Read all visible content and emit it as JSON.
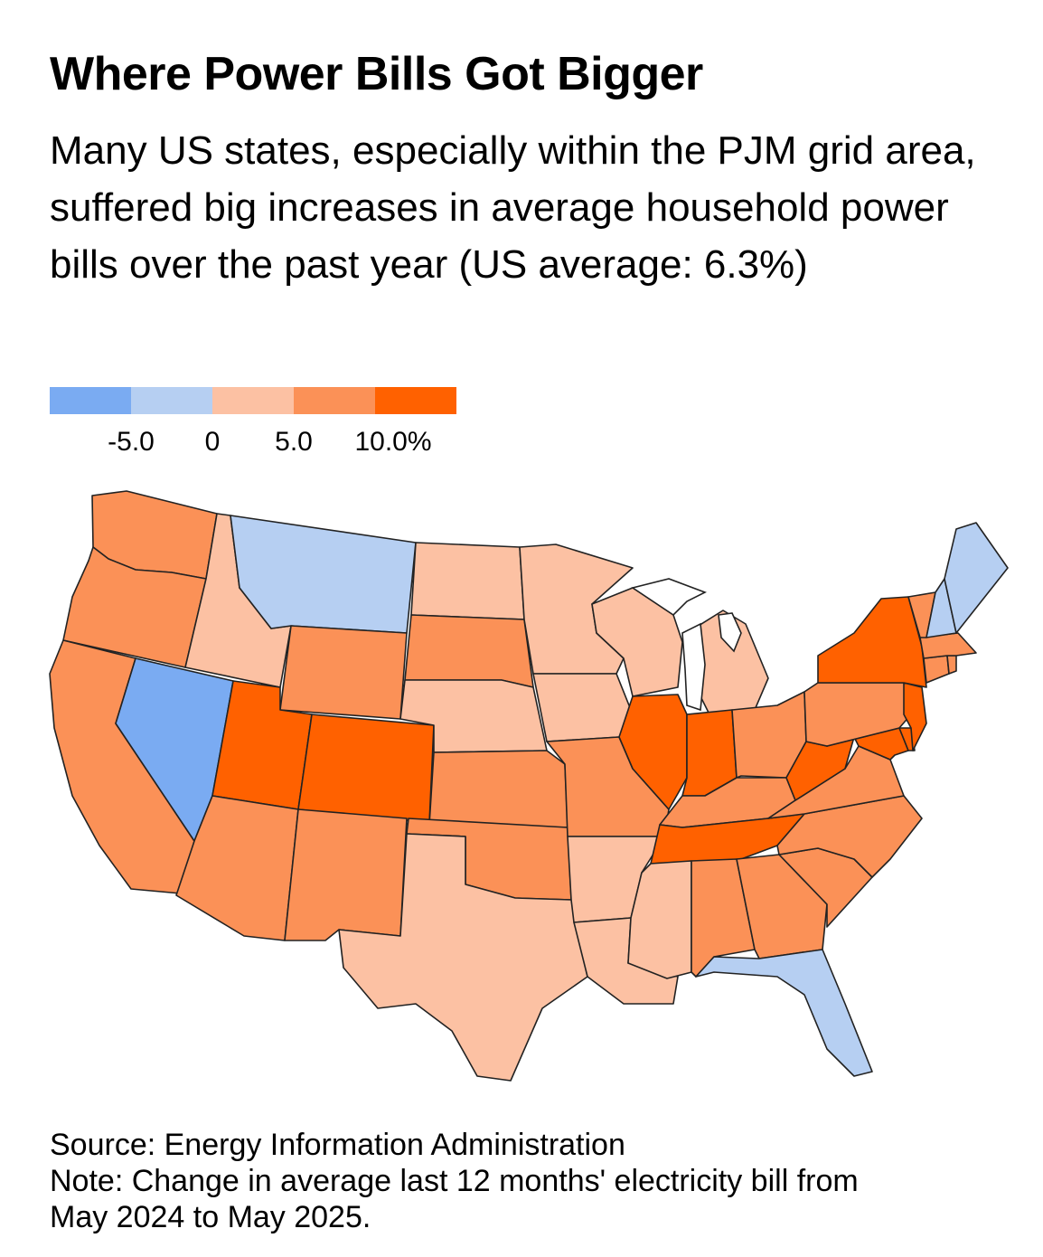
{
  "title": "Where Power Bills Got Bigger",
  "subtitle": "Many US states, especially within the PJM grid area, suffered big increases in average household power bills over the past year (US average: 6.3%)",
  "legend": {
    "colors": [
      "#7aabf2",
      "#b6cff2",
      "#fcc1a3",
      "#fb9157",
      "#ff6100"
    ],
    "ticks": [
      "-5.0",
      "0",
      "5.0",
      "10.0%"
    ]
  },
  "bins": {
    "b1": "#7aabf2",
    "b2": "#b6cff2",
    "b3": "#fcc1a3",
    "b4": "#fb9157",
    "b5": "#ff6100"
  },
  "states": [
    {
      "name": "Washington",
      "bin": "b4"
    },
    {
      "name": "Oregon",
      "bin": "b4"
    },
    {
      "name": "California",
      "bin": "b4"
    },
    {
      "name": "Idaho",
      "bin": "b3"
    },
    {
      "name": "Nevada",
      "bin": "b1"
    },
    {
      "name": "Montana",
      "bin": "b2"
    },
    {
      "name": "Wyoming",
      "bin": "b4"
    },
    {
      "name": "Utah",
      "bin": "b5"
    },
    {
      "name": "Arizona",
      "bin": "b4"
    },
    {
      "name": "Colorado",
      "bin": "b5"
    },
    {
      "name": "New Mexico",
      "bin": "b4"
    },
    {
      "name": "North Dakota",
      "bin": "b3"
    },
    {
      "name": "South Dakota",
      "bin": "b4"
    },
    {
      "name": "Nebraska",
      "bin": "b3"
    },
    {
      "name": "Kansas",
      "bin": "b4"
    },
    {
      "name": "Oklahoma",
      "bin": "b4"
    },
    {
      "name": "Texas",
      "bin": "b3"
    },
    {
      "name": "Minnesota",
      "bin": "b3"
    },
    {
      "name": "Iowa",
      "bin": "b3"
    },
    {
      "name": "Missouri",
      "bin": "b4"
    },
    {
      "name": "Arkansas",
      "bin": "b3"
    },
    {
      "name": "Louisiana",
      "bin": "b3"
    },
    {
      "name": "Wisconsin",
      "bin": "b3"
    },
    {
      "name": "Illinois",
      "bin": "b5"
    },
    {
      "name": "Michigan",
      "bin": "b3"
    },
    {
      "name": "Indiana",
      "bin": "b5"
    },
    {
      "name": "Ohio",
      "bin": "b4"
    },
    {
      "name": "Kentucky",
      "bin": "b4"
    },
    {
      "name": "Tennessee",
      "bin": "b5"
    },
    {
      "name": "Mississippi",
      "bin": "b3"
    },
    {
      "name": "Alabama",
      "bin": "b4"
    },
    {
      "name": "Georgia",
      "bin": "b4"
    },
    {
      "name": "Florida",
      "bin": "b2"
    },
    {
      "name": "South Carolina",
      "bin": "b4"
    },
    {
      "name": "North Carolina",
      "bin": "b4"
    },
    {
      "name": "Virginia",
      "bin": "b4"
    },
    {
      "name": "West Virginia",
      "bin": "b5"
    },
    {
      "name": "Maryland",
      "bin": "b5"
    },
    {
      "name": "Delaware",
      "bin": "b5"
    },
    {
      "name": "Pennsylvania",
      "bin": "b4"
    },
    {
      "name": "New Jersey",
      "bin": "b5"
    },
    {
      "name": "New York",
      "bin": "b5"
    },
    {
      "name": "Connecticut",
      "bin": "b4"
    },
    {
      "name": "Rhode Island",
      "bin": "b4"
    },
    {
      "name": "Massachusetts",
      "bin": "b4"
    },
    {
      "name": "Vermont",
      "bin": "b4"
    },
    {
      "name": "New Hampshire",
      "bin": "b2"
    },
    {
      "name": "Maine",
      "bin": "b2"
    }
  ],
  "source": "Source: Energy Information Administration",
  "note_line1": "Note: Change in average last 12 months' electricity bill from",
  "note_line2": "May 2024 to May 2025."
}
